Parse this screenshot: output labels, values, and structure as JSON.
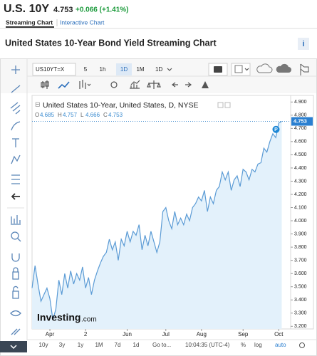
{
  "header": {
    "symbol": "U.S. 10Y",
    "price": "4.753",
    "change": "+0.066 (+1.41%)"
  },
  "tabs": [
    "Streaming Chart",
    "Interactive Chart"
  ],
  "title": "United States 10-Year Bond Yield Streaming Chart",
  "info_icon": "i",
  "toolbar": {
    "symbol_input": "US10YT=X",
    "intervals": [
      "5",
      "1h",
      "1D",
      "1M"
    ],
    "chart_interval": "1D"
  },
  "logo": {
    "name": "Investing",
    "suffix": ".com"
  },
  "bottom_bar": {
    "ranges": [
      "10y",
      "3y",
      "1y",
      "1M",
      "7d",
      "1d"
    ],
    "goto": "Go to...",
    "clock": "10:04:35 (UTC-4)",
    "scale_options": [
      "%",
      "log",
      "auto"
    ]
  },
  "chart_data": {
    "type": "line",
    "series": [
      {
        "name": "United States 10-Year, United States, D, NYSE",
        "color": "#5b9bd5",
        "values": [
          3.49,
          3.66,
          3.52,
          3.39,
          3.44,
          3.49,
          3.41,
          3.25,
          3.33,
          3.55,
          3.44,
          3.6,
          3.49,
          3.62,
          3.52,
          3.6,
          3.55,
          3.65,
          3.49,
          3.57,
          3.44,
          3.55,
          3.62,
          3.68,
          3.73,
          3.76,
          3.86,
          3.78,
          3.84,
          3.7,
          3.86,
          3.81,
          3.92,
          3.84,
          3.92,
          3.89,
          3.97,
          3.78,
          3.89,
          3.81,
          3.92,
          3.84,
          3.76,
          3.84,
          4.07,
          4.1,
          4.0,
          3.94,
          4.07,
          3.97,
          4.02,
          3.97,
          4.05,
          4.0,
          4.1,
          4.13,
          4.18,
          4.15,
          4.23,
          4.07,
          4.18,
          4.13,
          4.23,
          4.26,
          4.37,
          4.31,
          4.37,
          4.23,
          4.31,
          4.34,
          4.26,
          4.39,
          4.37,
          4.31,
          4.39,
          4.37,
          4.43,
          4.44,
          4.55,
          4.52,
          4.6,
          4.66,
          4.63,
          4.74,
          4.753
        ]
      }
    ],
    "ohlc": [
      {
        "label": "O",
        "value": "4.685"
      },
      {
        "label": "H",
        "value": "4.757"
      },
      {
        "label": "L",
        "value": "4.666"
      },
      {
        "label": "C",
        "value": "4.753"
      }
    ],
    "annotation": "P",
    "xlim": [
      0,
      87
    ],
    "xticks": [
      {
        "value": 6,
        "label": "Apr"
      },
      {
        "value": 18,
        "label": "2"
      },
      {
        "value": 32,
        "label": "Jun"
      },
      {
        "value": 45,
        "label": "Jul"
      },
      {
        "value": 57,
        "label": "Aug"
      },
      {
        "value": 71,
        "label": "Sep"
      },
      {
        "value": 83,
        "label": "Oct"
      }
    ],
    "ylim": [
      3.18,
      4.95
    ],
    "yticks": [
      {
        "value": 3.2,
        "label": "3.200"
      },
      {
        "value": 3.3,
        "label": "3.300"
      },
      {
        "value": 3.4,
        "label": "3.400"
      },
      {
        "value": 3.5,
        "label": "3.500"
      },
      {
        "value": 3.6,
        "label": "3.600"
      },
      {
        "value": 3.7,
        "label": "3.700"
      },
      {
        "value": 3.8,
        "label": "3.800"
      },
      {
        "value": 3.9,
        "label": "3.900"
      },
      {
        "value": 4.0,
        "label": "4.000"
      },
      {
        "value": 4.1,
        "label": "4.100"
      },
      {
        "value": 4.2,
        "label": "4.200"
      },
      {
        "value": 4.3,
        "label": "4.300"
      },
      {
        "value": 4.4,
        "label": "4.400"
      },
      {
        "value": 4.5,
        "label": "4.500"
      },
      {
        "value": 4.6,
        "label": "4.600"
      },
      {
        "value": 4.7,
        "label": "4.700"
      },
      {
        "value": 4.8,
        "label": "4.800"
      },
      {
        "value": 4.9,
        "label": "4.900"
      }
    ],
    "grid": false,
    "log_scale": false,
    "fill_color": "#e3f1fb"
  }
}
